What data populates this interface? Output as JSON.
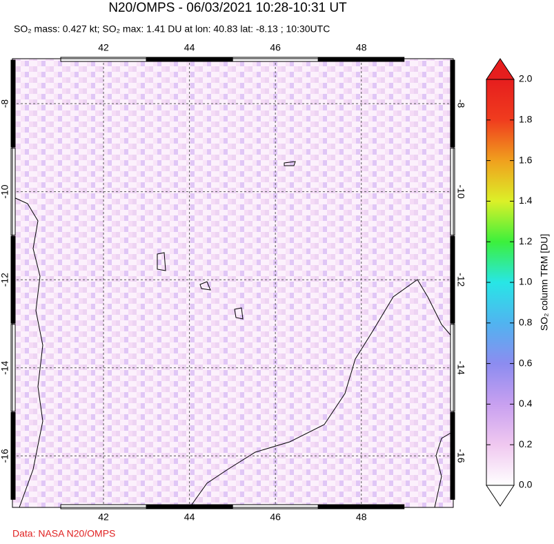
{
  "chart_data": {
    "type": "map",
    "title": "N20/OMPS - 06/03/2021 10:28-10:31 UT",
    "subtitle": "SO₂ mass: 0.427 kt; SO₂ max: 1.41 DU at lon: 40.83 lat: -8.13 ; 10:30UTC",
    "xlim": [
      39.88,
      50.14
    ],
    "ylim": [
      -17.17,
      -6.98
    ],
    "xticks": [
      42,
      44,
      46,
      48
    ],
    "yticks": [
      -8,
      -10,
      -12,
      -14,
      -16
    ],
    "grid": true,
    "colorbar_label": "SO₂ column TRM [DU]",
    "colorbar_lim": [
      0,
      2
    ],
    "colorbar_ticks": [
      {
        "value": 0,
        "label": "0.0"
      },
      {
        "value": 0.2,
        "label": "0.2"
      },
      {
        "value": 0.4,
        "label": "0.4"
      },
      {
        "value": 0.6,
        "label": "0.6"
      },
      {
        "value": 0.8,
        "label": "0.8"
      },
      {
        "value": 1.0,
        "label": "1.0"
      },
      {
        "value": 1.2,
        "label": "1.2"
      },
      {
        "value": 1.4,
        "label": "1.4"
      },
      {
        "value": 1.6,
        "label": "1.6"
      },
      {
        "value": 1.8,
        "label": "1.8"
      },
      {
        "value": 2.0,
        "label": "2.0"
      }
    ],
    "colorbar_colors": [
      "#ffffff",
      "#f0c8f0",
      "#c8a0f0",
      "#8c8cf0",
      "#50b4f0",
      "#28e6e6",
      "#3cf03c",
      "#dcf028",
      "#f0a01e",
      "#f03c1e",
      "#e61e1e"
    ],
    "source": "Data: NASA N20/OMPS"
  }
}
